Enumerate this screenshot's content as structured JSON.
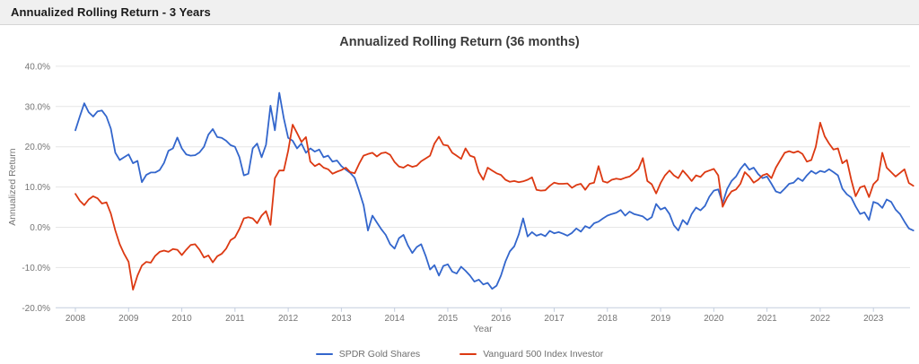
{
  "header": {
    "title": "Annualized Rolling Return - 3 Years"
  },
  "chart": {
    "title": "Annualized Rolling Return (36 months)",
    "y_axis_title": "Annualized Return",
    "x_axis_title": "Year",
    "y_tick_labels": [
      "40.0%",
      "30.0%",
      "20.0%",
      "10.0%",
      "0.0%",
      "-10.0%",
      "-20.0%"
    ],
    "x_tick_labels": [
      "2008",
      "2009",
      "2010",
      "2011",
      "2012",
      "2013",
      "2014",
      "2015",
      "2016",
      "2017",
      "2018",
      "2019",
      "2020",
      "2021",
      "2022",
      "2023"
    ]
  },
  "colors": {
    "series1": "#3366cc",
    "series2": "#dc3912",
    "gridline": "#e6e6e6",
    "axis_line": "#c3cede",
    "tick_text": "#757575",
    "axis_title_text": "#757575",
    "title_text": "#3c3c3c"
  },
  "chart_data": {
    "type": "line",
    "title": "Annualized Rolling Return (36 months)",
    "xlabel": "Year",
    "ylabel": "Annualized Return",
    "x_start": "2008-01",
    "x_end": "2023-10",
    "x_step_months": 1,
    "ylim": [
      -20,
      40
    ],
    "y_ticks": [
      40,
      30,
      20,
      10,
      0,
      -10,
      -20
    ],
    "x_year_ticks": [
      2008,
      2009,
      2010,
      2011,
      2012,
      2013,
      2014,
      2015,
      2016,
      2017,
      2018,
      2019,
      2020,
      2021,
      2022,
      2023
    ],
    "grid": true,
    "legend_position": "bottom",
    "unit": "percent",
    "series": [
      {
        "name": "SPDR Gold Shares",
        "color": "#3366cc",
        "values": [
          24.1,
          27.5,
          30.8,
          28.6,
          27.5,
          28.8,
          29,
          27.5,
          24.5,
          18.5,
          16.7,
          17.4,
          18.1,
          15.9,
          16.5,
          11.2,
          13,
          13.6,
          13.6,
          14.2,
          16,
          19,
          19.6,
          22.3,
          19.6,
          18.1,
          17.8,
          17.9,
          18.6,
          20,
          23,
          24.4,
          22.4,
          22.2,
          21.5,
          20.4,
          20,
          17.4,
          12.9,
          13.3,
          19.6,
          20.8,
          17.4,
          20.5,
          30.2,
          24.1,
          33.4,
          27.1,
          22.2,
          21.5,
          19.6,
          20.8,
          18.5,
          19.6,
          18.8,
          19.3,
          17.4,
          17.8,
          16.3,
          16.6,
          15.2,
          14.3,
          13.5,
          12.3,
          9,
          5.5,
          -0.8,
          2.9,
          1.2,
          -0.5,
          -1.9,
          -4.2,
          -5.3,
          -2.7,
          -1.9,
          -4.5,
          -6.4,
          -4.9,
          -4.2,
          -7.1,
          -10.5,
          -9.4,
          -12,
          -9.6,
          -9.2,
          -11,
          -11.5,
          -9.8,
          -10.8,
          -12,
          -13.5,
          -13,
          -14.2,
          -13.8,
          -15.3,
          -14.5,
          -12,
          -8.5,
          -6,
          -4.7,
          -1.8,
          2.2,
          -2.3,
          -1.2,
          -2.1,
          -1.7,
          -2.2,
          -0.9,
          -1.5,
          -1.2,
          -1.6,
          -2.1,
          -1.4,
          -0.3,
          -1.1,
          0.3,
          -0.2,
          1,
          1.4,
          2.2,
          2.9,
          3.3,
          3.6,
          4.3,
          2.9,
          3.9,
          3.3,
          3,
          2.7,
          1.8,
          2.5,
          5.8,
          4.4,
          4.9,
          3.3,
          0.5,
          -0.8,
          1.8,
          0.7,
          3.3,
          4.9,
          4.2,
          5.3,
          7.6,
          9.1,
          9.4,
          6,
          9.5,
          11.5,
          12.6,
          14.5,
          15.8,
          14.3,
          14.8,
          13.2,
          12.2,
          12.6,
          10.8,
          8.9,
          8.5,
          9.6,
          10.8,
          11.1,
          12.2,
          11.5,
          12.9,
          14,
          13.3,
          14,
          13.7,
          14.4,
          13.7,
          12.9,
          9.6,
          8.2,
          7.4,
          5.2,
          3.3,
          3.7,
          1.8,
          6.3,
          5.9,
          4.8,
          6.9,
          6.3,
          4.4,
          3.3,
          1.4,
          -0.3,
          -0.8
        ]
      },
      {
        "name": "Vanguard 500 Index Investor",
        "color": "#dc3912",
        "values": [
          8.3,
          6.6,
          5.5,
          6.9,
          7.7,
          7.2,
          5.9,
          6.2,
          3.4,
          -0.8,
          -4.2,
          -6.6,
          -8.6,
          -15.5,
          -12,
          -9.5,
          -8.6,
          -8.8,
          -7.1,
          -6.1,
          -5.8,
          -6.1,
          -5.4,
          -5.6,
          -6.9,
          -5.6,
          -4.4,
          -4.2,
          -5.6,
          -7.5,
          -7,
          -8.7,
          -7.2,
          -6.6,
          -5.3,
          -3.2,
          -2.5,
          -0.4,
          2.2,
          2.5,
          2.2,
          1,
          2.9,
          4,
          0.6,
          12.2,
          14.1,
          14.1,
          19,
          25.5,
          23.4,
          21.2,
          22.4,
          16.3,
          15.2,
          15.8,
          14.8,
          14.4,
          13.3,
          13.8,
          14.2,
          14.8,
          13.7,
          13.4,
          15.8,
          17.8,
          18.2,
          18.5,
          17.6,
          18.4,
          18.6,
          18,
          16.2,
          15.1,
          14.8,
          15.5,
          15,
          15.3,
          16.4,
          17.1,
          17.8,
          20.8,
          22.5,
          20.5,
          20.3,
          18.5,
          17.8,
          17,
          19.6,
          17.8,
          17.4,
          13.7,
          11.8,
          14.8,
          14.1,
          13.4,
          13,
          11.8,
          11.3,
          11.5,
          11.2,
          11.4,
          11.8,
          12.4,
          9.3,
          9.1,
          9.2,
          10.3,
          11.1,
          10.8,
          10.8,
          10.9,
          9.8,
          10.5,
          10.8,
          9.3,
          10.8,
          11.1,
          15.2,
          11.4,
          11.1,
          11.8,
          12.1,
          11.9,
          12.3,
          12.6,
          13.5,
          14.5,
          17.2,
          11.5,
          10.7,
          8.4,
          11,
          12.9,
          14.1,
          12.9,
          12.2,
          14.1,
          12.9,
          11.5,
          12.9,
          12.5,
          13.7,
          14.1,
          14.5,
          12.9,
          5.1,
          7.4,
          8.9,
          9.4,
          10.8,
          13.7,
          12.6,
          11.1,
          11.8,
          12.9,
          13.3,
          12.2,
          14.8,
          16.7,
          18.5,
          18.9,
          18.5,
          18.9,
          18.2,
          16.3,
          16.7,
          20,
          26,
          22.6,
          20.8,
          19.3,
          19.6,
          15.9,
          16.7,
          11.8,
          7.7,
          9.9,
          10.3,
          7.5,
          10.7,
          11.8,
          18.5,
          14.8,
          13.7,
          12.6,
          13.5,
          14.4,
          11,
          10.3
        ]
      }
    ]
  }
}
